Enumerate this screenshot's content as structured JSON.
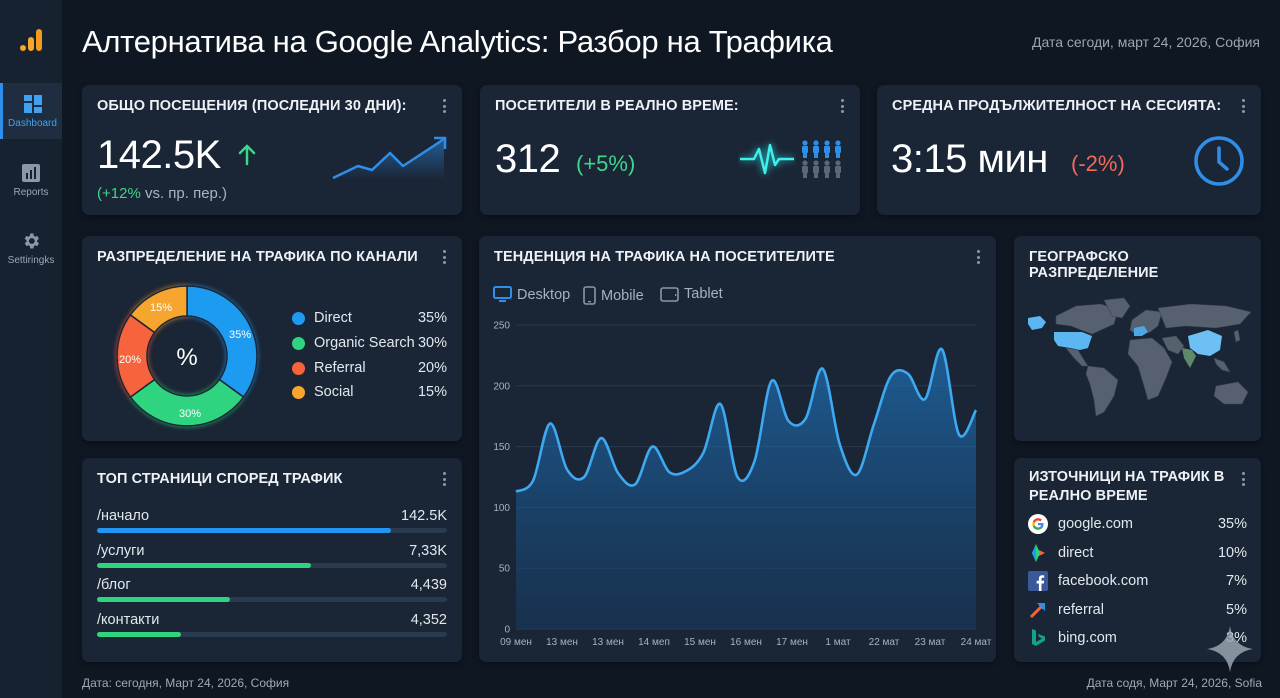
{
  "header": {
    "title": "Алтернатива на Google Analytics: Разбор на Трафика",
    "date": "Дата сегоди, март 24, 2026, София"
  },
  "sidebar": {
    "logo_icon": "bar-chart-logo-icon",
    "items": [
      {
        "label": "Dashboard",
        "icon": "dashboard-icon",
        "active": true
      },
      {
        "label": "Reports",
        "icon": "reports-icon",
        "active": false
      },
      {
        "label": "Settiringks",
        "icon": "gear-icon",
        "active": false
      }
    ]
  },
  "kpis": {
    "total_visits": {
      "title": "ОБЩО ПОСЕЩЕНИЯ (ПОСЛЕДНИ 30 ДНИ):",
      "value": "142.5K",
      "trend_icon": "arrow-up-icon",
      "change": "(+12%",
      "change_suffix": " vs. пр. пер.)",
      "change_color": "#3dd68c"
    },
    "realtime": {
      "title": "ПОСЕТИТЕЛИ В РЕАЛНО ВРЕМЕ:",
      "value": "312",
      "change": "(+5%)",
      "change_color": "#3dd68c"
    },
    "session_duration": {
      "title": "СРЕДНА ПРОДЪЛЖИТЕЛНОСТ НА СЕСИЯТА:",
      "value": "3:15 мин",
      "change": "(-2%)",
      "change_color": "#f26a5a"
    }
  },
  "channels": {
    "title": "РАЗПРЕДЕЛЕНИЕ НА ТРАФИКА ПО КАНАЛИ",
    "center_label": "%",
    "items": [
      {
        "label": "Direct",
        "value": "35%",
        "color": "#1e9bf0"
      },
      {
        "label": "Organic Search",
        "value": "30%",
        "color": "#2fd47f"
      },
      {
        "label": "Referral",
        "value": "20%",
        "color": "#f7643c"
      },
      {
        "label": "Social",
        "value": "15%",
        "color": "#f6a62d"
      }
    ]
  },
  "top_pages": {
    "title": "ТОП СТРАНИЦИ СПОРЕД ТРАФИК",
    "items": [
      {
        "path": "/начало",
        "value": "142.5K",
        "pct": 84,
        "color": "#2196f3"
      },
      {
        "path": "/услуги",
        "value": "7,33K",
        "pct": 61,
        "color": "#2fd47f"
      },
      {
        "path": "/блог",
        "value": "4,439",
        "pct": 38,
        "color": "#2fd47f"
      },
      {
        "path": "/контакти",
        "value": "4,352",
        "pct": 24,
        "color": "#2fd47f"
      }
    ]
  },
  "trend": {
    "title": "ТЕНДЕНЦИЯ НА ТРАФИКА НА ПОСЕТИТЕЛИТЕ",
    "tabs": [
      {
        "label": "Desktop",
        "icon": "desktop-icon",
        "active": true
      },
      {
        "label": "Mobile",
        "icon": "mobile-icon",
        "active": false
      },
      {
        "label": "Tablet",
        "icon": "tablet-icon",
        "active": false
      }
    ]
  },
  "chart_data": {
    "type": "area",
    "title": "ТЕНДЕНЦИЯ НА ТРАФИКА НА ПОСЕТИТЕЛИТЕ",
    "xlabel": "",
    "ylabel": "",
    "ylim": [
      0,
      250
    ],
    "yticks": [
      0,
      50,
      100,
      150,
      200,
      250
    ],
    "grid": true,
    "legend": [
      "Desktop",
      "Mobile",
      "Tablet"
    ],
    "x_tick_labels": [
      "09 мен",
      "13 мен",
      "13 мен",
      "14 меп",
      "15 мен",
      "16 мен",
      "17 мен",
      "1 мат",
      "22 мат",
      "23 мат",
      "24 мат"
    ],
    "series": [
      {
        "name": "Desktop",
        "color": "#3ea8f0",
        "values": [
          113,
          122,
          169,
          131,
          125,
          157,
          128,
          119,
          150,
          129,
          130,
          145,
          185,
          125,
          138,
          204,
          171,
          173,
          214,
          152,
          127,
          168,
          208,
          210,
          189,
          230,
          160,
          180
        ]
      }
    ]
  },
  "geo": {
    "title": "ГЕОГРАФСКО РАЗПРЕДЕЛЕНИЕ",
    "highlight_color": "#5bb6f2",
    "secondary_color": "#5e8a6a"
  },
  "sources": {
    "title": "ИЗТОЧНИЦИ НА ТРАФИК В РЕАЛНО ВРЕМЕ",
    "items": [
      {
        "label": "google.com",
        "value": "35%",
        "icon": "google-icon"
      },
      {
        "label": "direct",
        "value": "10%",
        "icon": "direct-arrow-icon"
      },
      {
        "label": "facebook.com",
        "value": "7%",
        "icon": "facebook-icon"
      },
      {
        "label": "referral",
        "value": "5%",
        "icon": "referral-arrow-icon"
      },
      {
        "label": "bing.com",
        "value": "3%",
        "icon": "bing-icon"
      }
    ]
  },
  "footer": {
    "left": "Дата: сегодня, Март 24, 2026, София",
    "right": "Дата содя, Март 24, 2026, Sofia"
  }
}
